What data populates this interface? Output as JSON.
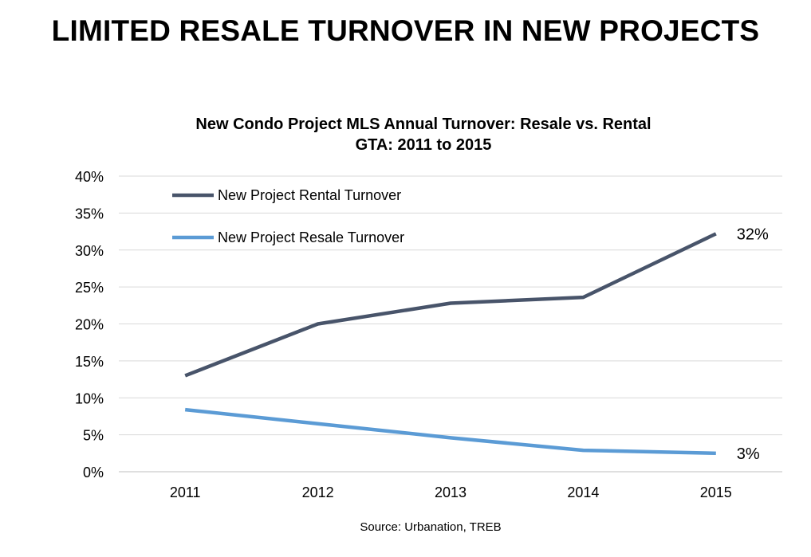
{
  "page": {
    "title": "LIMITED RESALE TURNOVER IN NEW PROJECTS",
    "source": "Source: Urbanation, TREB"
  },
  "chart_data": {
    "type": "line",
    "title": "New Condo Project MLS Annual Turnover: Resale vs. Rental",
    "subtitle": "GTA: 2011 to 2015",
    "xlabel": "",
    "ylabel": "",
    "x": [
      "2011",
      "2012",
      "2013",
      "2014",
      "2015"
    ],
    "ylim": [
      0,
      40
    ],
    "yticks": [
      0,
      5,
      10,
      15,
      20,
      25,
      30,
      35,
      40
    ],
    "ytick_labels": [
      "0%",
      "5%",
      "10%",
      "15%",
      "20%",
      "25%",
      "30%",
      "35%",
      "40%"
    ],
    "grid": true,
    "legend_position": "top-left",
    "series": [
      {
        "name": "New Project Rental Turnover",
        "color": "#48546a",
        "values": [
          13,
          20,
          22.8,
          23.6,
          32.2
        ],
        "end_label": "32%"
      },
      {
        "name": "New Project Resale Turnover",
        "color": "#5b9bd5",
        "values": [
          8.4,
          6.5,
          4.6,
          2.9,
          2.5
        ],
        "end_label": "3%"
      }
    ]
  }
}
